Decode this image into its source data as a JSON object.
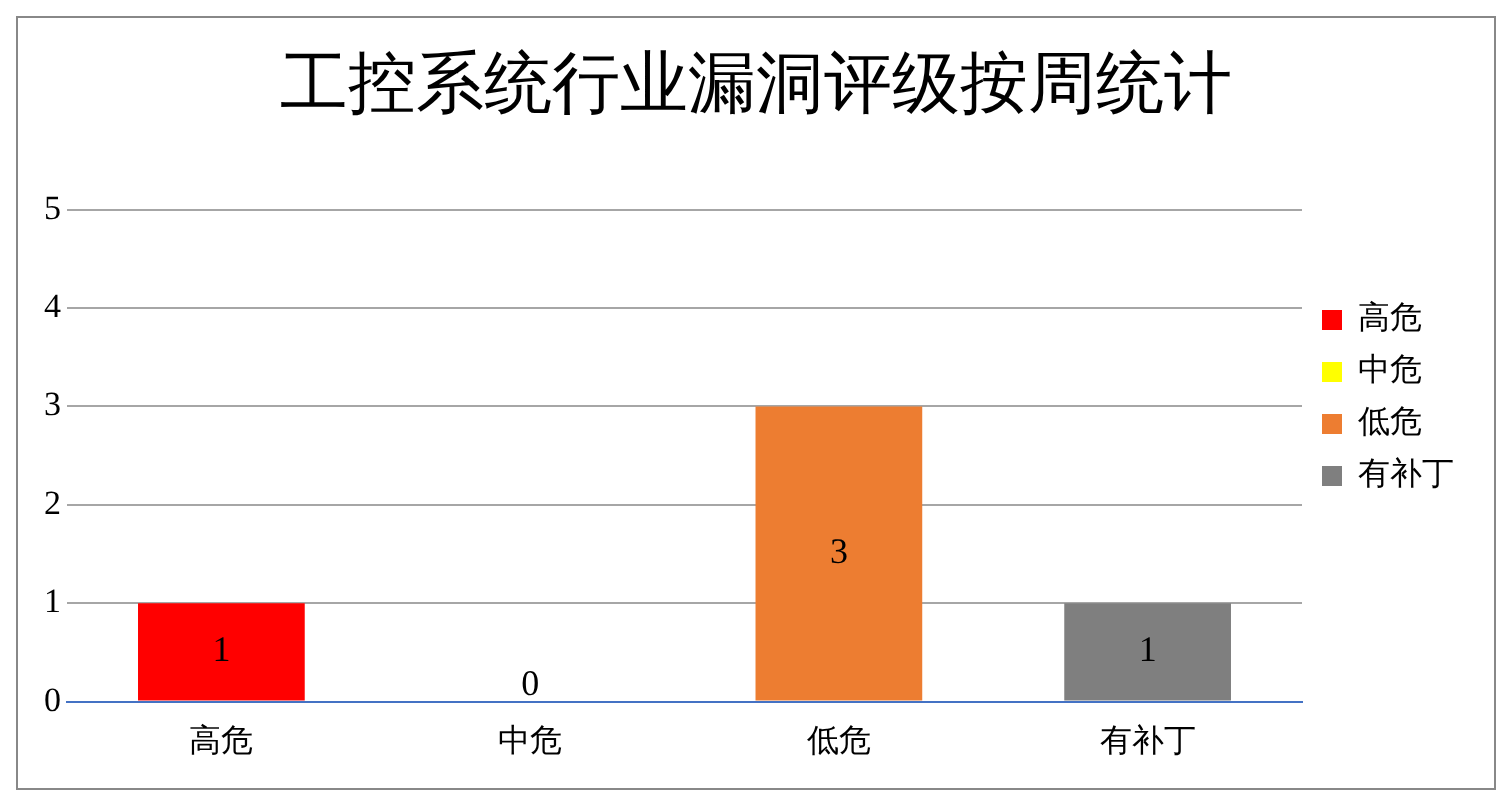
{
  "chart_data": {
    "type": "bar",
    "title": "工控系统行业漏洞评级按周统计",
    "categories": [
      "高危",
      "中危",
      "低危",
      "有补丁"
    ],
    "series": [
      {
        "name": "高危",
        "color": "#ff0000",
        "values": [
          1,
          null,
          null,
          null
        ]
      },
      {
        "name": "中危",
        "color": "#ffff00",
        "values": [
          null,
          0,
          null,
          null
        ]
      },
      {
        "name": "低危",
        "color": "#ed7d31",
        "values": [
          null,
          null,
          3,
          null
        ]
      },
      {
        "name": "有补丁",
        "color": "#7f7f7f",
        "values": [
          null,
          null,
          null,
          1
        ]
      }
    ],
    "ylim": [
      0,
      5
    ],
    "yticks": [
      0,
      1,
      2,
      3,
      4,
      5
    ],
    "grid": "y",
    "legend": "right",
    "data_labels": true
  }
}
